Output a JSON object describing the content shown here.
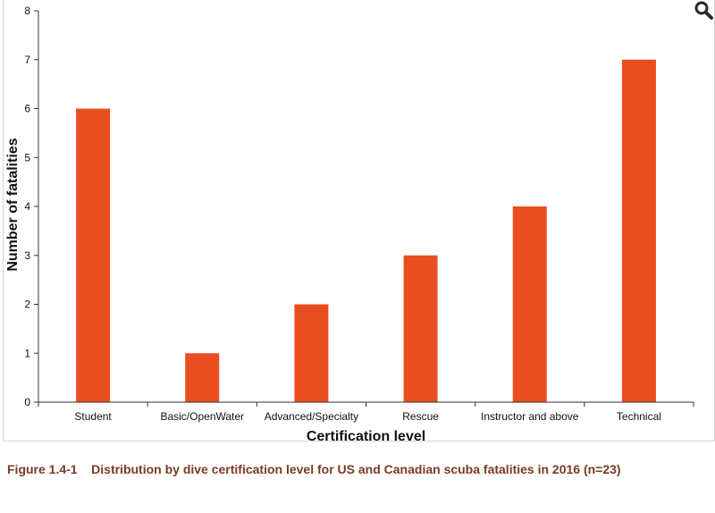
{
  "chart_data": {
    "type": "bar",
    "categories": [
      "Student",
      "Basic/OpenWater",
      "Advanced/Specialty",
      "Rescue",
      "Instructor and above",
      "Technical"
    ],
    "values": [
      6,
      1,
      2,
      3,
      4,
      7
    ],
    "title": "",
    "xlabel": "Certification level",
    "ylabel": "Number of fatalities",
    "ylim": [
      0,
      8
    ],
    "yticks": [
      0,
      1,
      2,
      3,
      4,
      5,
      6,
      7,
      8
    ],
    "grid": false,
    "legend": "none",
    "bar_color": "#e84e1f"
  },
  "caption": {
    "label": "Figure 1.4-1",
    "text": "Distribution by dive certification level for US and Canadian scuba fatalities in 2016 (n=23)"
  },
  "toolbar": {
    "zoom_icon": "magnifier-icon"
  },
  "colors": {
    "caption": "#7a3a26",
    "axis": "#333333",
    "frame_border": "#d4d4d4"
  }
}
